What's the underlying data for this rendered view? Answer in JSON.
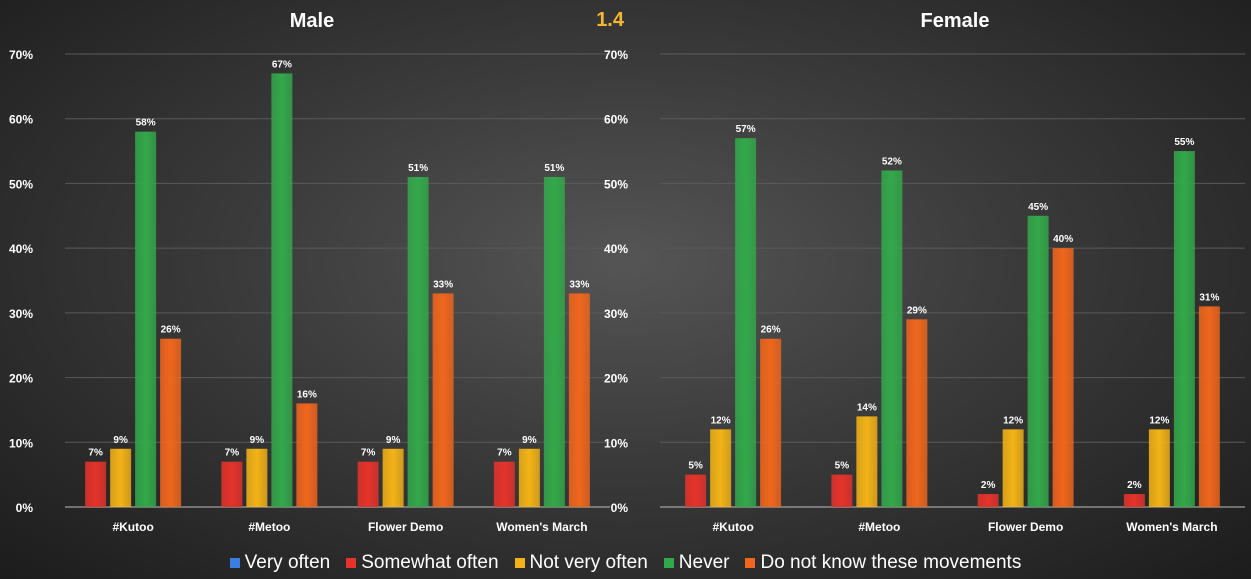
{
  "badge": "1.4",
  "colors": {
    "Very often": "#3a7fe0",
    "Somewhat often": "#e5332a",
    "Not very often": "#f2b316",
    "Never": "#33a84a",
    "Do not know these movements": "#f0661c",
    "badge": "#f5b731"
  },
  "chart_data": [
    {
      "type": "bar",
      "title": "Male",
      "categories": [
        "#Kutoo",
        "#Metoo",
        "Flower Demo",
        "Women's March"
      ],
      "ylim": [
        0,
        70
      ],
      "yticks": [
        "0%",
        "10%",
        "20%",
        "30%",
        "40%",
        "50%",
        "60%",
        "70%"
      ],
      "grid": true,
      "legend_position": "bottom",
      "series": [
        {
          "name": "Somewhat often",
          "values": [
            7,
            7,
            7,
            7
          ],
          "labels": [
            "7%",
            "7%",
            "7%",
            "7%"
          ]
        },
        {
          "name": "Not very often",
          "values": [
            9,
            9,
            9,
            9
          ],
          "labels": [
            "9%",
            "9%",
            "9%",
            "9%"
          ]
        },
        {
          "name": "Never",
          "values": [
            58,
            67,
            51,
            51
          ],
          "labels": [
            "58%",
            "67%",
            "51%",
            "51%"
          ]
        },
        {
          "name": "Do not know these movements",
          "values": [
            26,
            16,
            33,
            33
          ],
          "labels": [
            "26%",
            "16%",
            "33%",
            "33%"
          ]
        }
      ]
    },
    {
      "type": "bar",
      "title": "Female",
      "categories": [
        "#Kutoo",
        "#Metoo",
        "Flower Demo",
        "Women's March"
      ],
      "ylim": [
        0,
        70
      ],
      "yticks": [
        "0%",
        "10%",
        "20%",
        "30%",
        "40%",
        "50%",
        "60%",
        "70%"
      ],
      "grid": true,
      "legend_position": "bottom",
      "series": [
        {
          "name": "Somewhat often",
          "values": [
            5,
            5,
            2,
            2
          ],
          "labels": [
            "5%",
            "5%",
            "2%",
            "2%"
          ]
        },
        {
          "name": "Not very often",
          "values": [
            12,
            14,
            12,
            12
          ],
          "labels": [
            "12%",
            "14%",
            "12%",
            "12%"
          ]
        },
        {
          "name": "Never",
          "values": [
            57,
            52,
            45,
            55
          ],
          "labels": [
            "57%",
            "52%",
            "45%",
            "55%"
          ]
        },
        {
          "name": "Do not know these movements",
          "values": [
            26,
            29,
            40,
            31
          ],
          "labels": [
            "26%",
            "29%",
            "40%",
            "31%"
          ]
        }
      ]
    }
  ],
  "legend": [
    {
      "label": "Very often",
      "color": "#3a7fe0"
    },
    {
      "label": "Somewhat often",
      "color": "#e5332a"
    },
    {
      "label": "Not very often",
      "color": "#f2b316"
    },
    {
      "label": "Never",
      "color": "#33a84a"
    },
    {
      "label": "Do not know these movements",
      "color": "#f0661c"
    }
  ]
}
